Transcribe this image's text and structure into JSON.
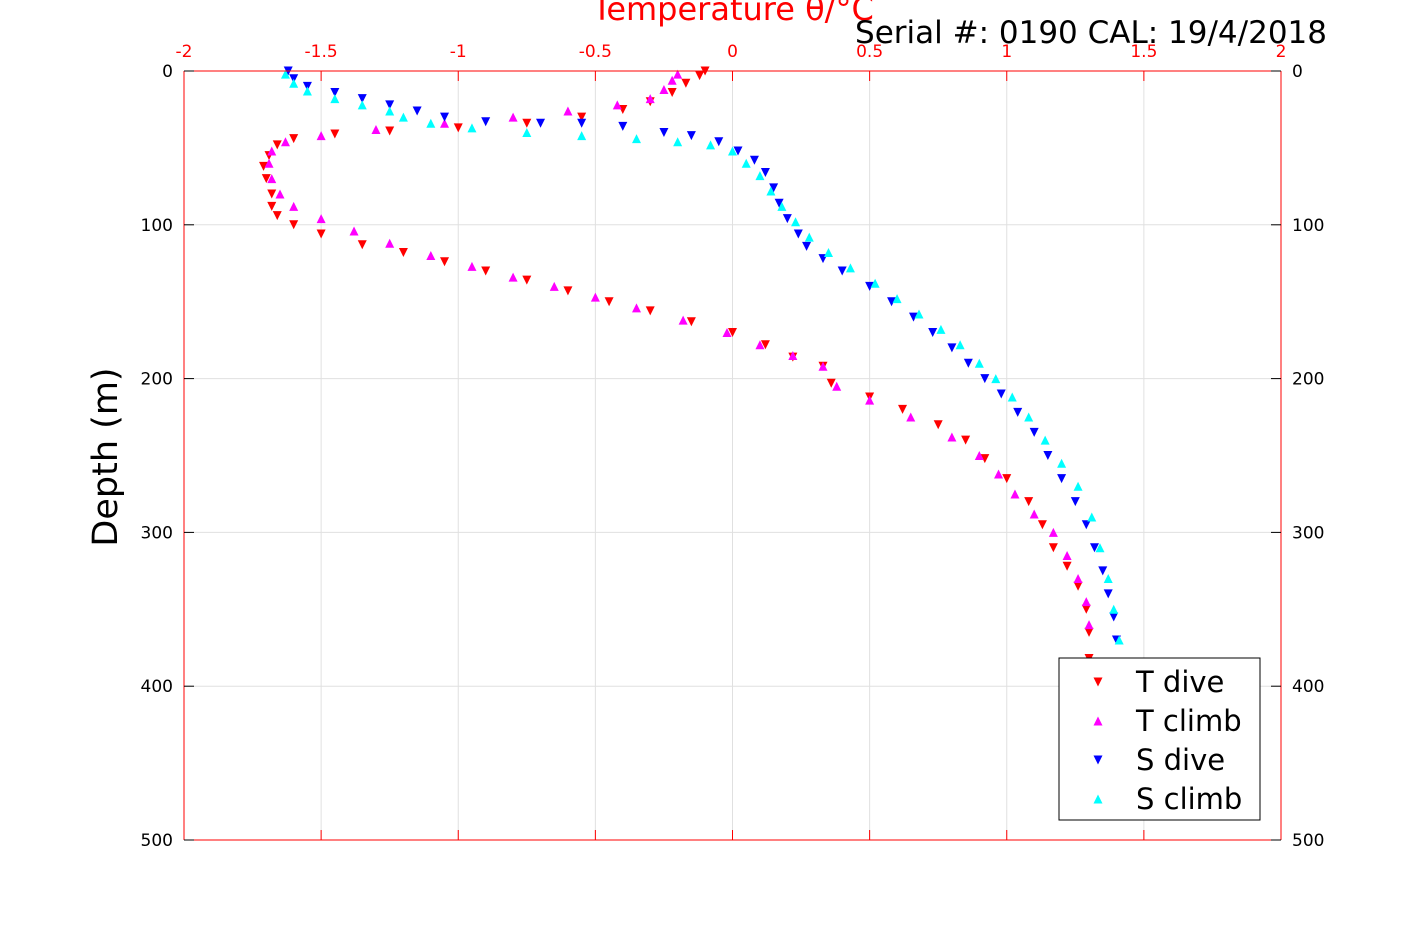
{
  "chart_data": {
    "type": "scatter",
    "title": "Temperature θ/°C",
    "annotation": "Serial #: 0190  CAL: 19/4/2018",
    "xlabel": "Temperature θ/°C",
    "ylabel": "Depth (m)",
    "xlim": [
      -2,
      2
    ],
    "ylim": [
      0,
      500
    ],
    "y_reversed": true,
    "x_axis_position": "top",
    "x_ticks": [
      "-2",
      "-1.5",
      "-1",
      "-0.5",
      "0",
      "0.5",
      "1",
      "1.5",
      "2"
    ],
    "y_ticks": [
      "0",
      "100",
      "200",
      "300",
      "400",
      "500"
    ],
    "grid": true,
    "legend_position": "bottom-right",
    "colors": {
      "axis": "#ff0000",
      "grid": "#e0e0e0"
    },
    "series": [
      {
        "name": "T dive",
        "color": "#ff0000",
        "marker": "triangle-down",
        "points": [
          [
            -0.1,
            0
          ],
          [
            -0.12,
            3
          ],
          [
            -0.17,
            8
          ],
          [
            -0.22,
            14
          ],
          [
            -0.3,
            20
          ],
          [
            -0.4,
            25
          ],
          [
            -0.55,
            30
          ],
          [
            -0.75,
            34
          ],
          [
            -1.0,
            37
          ],
          [
            -1.25,
            39
          ],
          [
            -1.45,
            41
          ],
          [
            -1.6,
            44
          ],
          [
            -1.66,
            48
          ],
          [
            -1.69,
            55
          ],
          [
            -1.71,
            62
          ],
          [
            -1.7,
            70
          ],
          [
            -1.68,
            80
          ],
          [
            -1.68,
            88
          ],
          [
            -1.66,
            94
          ],
          [
            -1.6,
            100
          ],
          [
            -1.5,
            106
          ],
          [
            -1.35,
            113
          ],
          [
            -1.2,
            118
          ],
          [
            -1.05,
            124
          ],
          [
            -0.9,
            130
          ],
          [
            -0.75,
            136
          ],
          [
            -0.6,
            143
          ],
          [
            -0.45,
            150
          ],
          [
            -0.3,
            156
          ],
          [
            -0.15,
            163
          ],
          [
            0.0,
            170
          ],
          [
            0.12,
            178
          ],
          [
            0.22,
            186
          ],
          [
            0.33,
            192
          ],
          [
            0.36,
            203
          ],
          [
            0.5,
            212
          ],
          [
            0.62,
            220
          ],
          [
            0.75,
            230
          ],
          [
            0.85,
            240
          ],
          [
            0.92,
            252
          ],
          [
            1.0,
            265
          ],
          [
            1.08,
            280
          ],
          [
            1.13,
            295
          ],
          [
            1.17,
            310
          ],
          [
            1.22,
            322
          ],
          [
            1.26,
            335
          ],
          [
            1.29,
            350
          ],
          [
            1.3,
            365
          ],
          [
            1.3,
            382
          ]
        ]
      },
      {
        "name": "T climb",
        "color": "#ff00ff",
        "marker": "triangle-up",
        "points": [
          [
            -0.2,
            2
          ],
          [
            -0.22,
            6
          ],
          [
            -0.25,
            12
          ],
          [
            -0.3,
            18
          ],
          [
            -0.42,
            22
          ],
          [
            -0.6,
            26
          ],
          [
            -0.8,
            30
          ],
          [
            -1.05,
            34
          ],
          [
            -1.3,
            38
          ],
          [
            -1.5,
            42
          ],
          [
            -1.63,
            46
          ],
          [
            -1.68,
            52
          ],
          [
            -1.69,
            60
          ],
          [
            -1.68,
            70
          ],
          [
            -1.65,
            80
          ],
          [
            -1.6,
            88
          ],
          [
            -1.5,
            96
          ],
          [
            -1.38,
            104
          ],
          [
            -1.25,
            112
          ],
          [
            -1.1,
            120
          ],
          [
            -0.95,
            127
          ],
          [
            -0.8,
            134
          ],
          [
            -0.65,
            140
          ],
          [
            -0.5,
            147
          ],
          [
            -0.35,
            154
          ],
          [
            -0.18,
            162
          ],
          [
            -0.02,
            170
          ],
          [
            0.1,
            178
          ],
          [
            0.22,
            185
          ],
          [
            0.33,
            192
          ],
          [
            0.38,
            205
          ],
          [
            0.5,
            214
          ],
          [
            0.65,
            225
          ],
          [
            0.8,
            238
          ],
          [
            0.9,
            250
          ],
          [
            0.97,
            262
          ],
          [
            1.03,
            275
          ],
          [
            1.1,
            288
          ],
          [
            1.17,
            300
          ],
          [
            1.22,
            315
          ],
          [
            1.26,
            330
          ],
          [
            1.29,
            345
          ],
          [
            1.3,
            360
          ],
          [
            1.3,
            385
          ]
        ]
      },
      {
        "name": "S dive",
        "color": "#0000ff",
        "marker": "triangle-down",
        "points": [
          [
            -1.62,
            0
          ],
          [
            -1.6,
            5
          ],
          [
            -1.55,
            10
          ],
          [
            -1.45,
            14
          ],
          [
            -1.35,
            18
          ],
          [
            -1.25,
            22
          ],
          [
            -1.15,
            26
          ],
          [
            -1.05,
            30
          ],
          [
            -0.9,
            33
          ],
          [
            -0.7,
            34
          ],
          [
            -0.55,
            34
          ],
          [
            -0.4,
            36
          ],
          [
            -0.25,
            40
          ],
          [
            -0.15,
            42
          ],
          [
            -0.05,
            46
          ],
          [
            0.02,
            52
          ],
          [
            0.08,
            58
          ],
          [
            0.12,
            66
          ],
          [
            0.15,
            76
          ],
          [
            0.17,
            86
          ],
          [
            0.2,
            96
          ],
          [
            0.24,
            106
          ],
          [
            0.27,
            114
          ],
          [
            0.33,
            122
          ],
          [
            0.4,
            130
          ],
          [
            0.5,
            140
          ],
          [
            0.58,
            150
          ],
          [
            0.66,
            160
          ],
          [
            0.73,
            170
          ],
          [
            0.8,
            180
          ],
          [
            0.86,
            190
          ],
          [
            0.92,
            200
          ],
          [
            0.98,
            210
          ],
          [
            1.04,
            222
          ],
          [
            1.1,
            235
          ],
          [
            1.15,
            250
          ],
          [
            1.2,
            265
          ],
          [
            1.25,
            280
          ],
          [
            1.29,
            295
          ],
          [
            1.32,
            310
          ],
          [
            1.35,
            325
          ],
          [
            1.37,
            340
          ],
          [
            1.39,
            355
          ],
          [
            1.4,
            370
          ],
          [
            1.4,
            385
          ]
        ]
      },
      {
        "name": "S climb",
        "color": "#00ffff",
        "marker": "triangle-up",
        "points": [
          [
            -1.63,
            2
          ],
          [
            -1.6,
            8
          ],
          [
            -1.55,
            13
          ],
          [
            -1.45,
            18
          ],
          [
            -1.35,
            22
          ],
          [
            -1.25,
            26
          ],
          [
            -1.2,
            30
          ],
          [
            -1.1,
            34
          ],
          [
            -0.95,
            37
          ],
          [
            -0.75,
            40
          ],
          [
            -0.55,
            42
          ],
          [
            -0.35,
            44
          ],
          [
            -0.2,
            46
          ],
          [
            -0.08,
            48
          ],
          [
            0.0,
            52
          ],
          [
            0.05,
            60
          ],
          [
            0.1,
            68
          ],
          [
            0.14,
            78
          ],
          [
            0.18,
            88
          ],
          [
            0.23,
            98
          ],
          [
            0.28,
            108
          ],
          [
            0.35,
            118
          ],
          [
            0.43,
            128
          ],
          [
            0.52,
            138
          ],
          [
            0.6,
            148
          ],
          [
            0.68,
            158
          ],
          [
            0.76,
            168
          ],
          [
            0.83,
            178
          ],
          [
            0.9,
            190
          ],
          [
            0.96,
            200
          ],
          [
            1.02,
            212
          ],
          [
            1.08,
            225
          ],
          [
            1.14,
            240
          ],
          [
            1.2,
            255
          ],
          [
            1.26,
            270
          ],
          [
            1.31,
            290
          ],
          [
            1.34,
            310
          ],
          [
            1.37,
            330
          ],
          [
            1.39,
            350
          ],
          [
            1.41,
            370
          ],
          [
            1.41,
            385
          ]
        ]
      }
    ]
  }
}
